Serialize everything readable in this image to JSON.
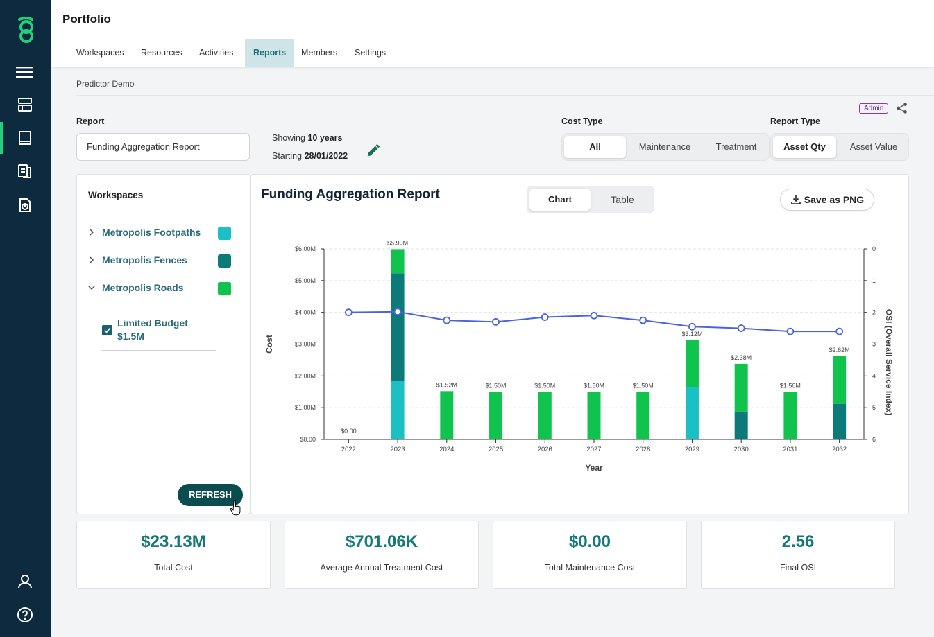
{
  "app": {
    "title": "Portfolio"
  },
  "tabs": [
    "Workspaces",
    "Resources",
    "Activities",
    "Reports",
    "Members",
    "Settings"
  ],
  "active_tab": "Reports",
  "breadcrumb": "Predictor Demo",
  "report": {
    "label": "Report",
    "value": "Funding Aggregation Report"
  },
  "showing": {
    "years_prefix": "Showing",
    "years_value": "10 years",
    "start_prefix": "Starting",
    "start_value": "28/01/2022"
  },
  "cost_type": {
    "label": "Cost Type",
    "options": [
      "All",
      "Maintenance",
      "Treatment"
    ],
    "selected": "All"
  },
  "report_type": {
    "label": "Report Type",
    "options": [
      "Asset Qty",
      "Asset Value"
    ],
    "selected": "Asset Qty"
  },
  "badge": "Admin",
  "workspaces": {
    "title": "Workspaces",
    "items": [
      {
        "name": "Metropolis Footpaths",
        "expanded": false,
        "color": "#1bc0c4"
      },
      {
        "name": "Metropolis Fences",
        "expanded": false,
        "color": "#0b7a78"
      },
      {
        "name": "Metropolis Roads",
        "expanded": true,
        "color": "#10c34d"
      }
    ],
    "budget": {
      "line1": "Limited Budget",
      "line2": "$1.5M",
      "checked": true
    },
    "refresh_label": "REFRESH"
  },
  "view_toggle": {
    "options": [
      "Chart",
      "Table"
    ],
    "selected": "Chart"
  },
  "save_label": "Save as PNG",
  "chart_data": {
    "type": "bar",
    "title": "Funding Aggregation Report",
    "xlabel": "Year",
    "ylabel": "Cost",
    "y2label": "OSI (Overall Service Index)",
    "ylim": [
      0,
      6
    ],
    "y2lim": [
      0,
      6
    ],
    "y2_inverted": true,
    "y_ticks": [
      "$0.00",
      "$1.00M",
      "$2.00M",
      "$3.00M",
      "$4.00M",
      "$5.00M",
      "$6.00M"
    ],
    "y2_ticks": [
      "0",
      "1",
      "2",
      "3",
      "4",
      "5",
      "6"
    ],
    "categories": [
      "2022",
      "2023",
      "2024",
      "2025",
      "2026",
      "2027",
      "2028",
      "2029",
      "2030",
      "2031",
      "2032"
    ],
    "series": [
      {
        "name": "Metropolis Footpaths",
        "color": "#1bc0c4",
        "values": [
          0,
          1.85,
          0,
          0,
          0,
          0,
          0,
          1.65,
          0,
          0,
          0
        ]
      },
      {
        "name": "Metropolis Fences",
        "color": "#0b7a78",
        "values": [
          0,
          3.38,
          0,
          0,
          0,
          0,
          0,
          0,
          0.88,
          0,
          1.12
        ]
      },
      {
        "name": "Metropolis Roads",
        "color": "#10c34d",
        "values": [
          0,
          0.76,
          1.52,
          1.5,
          1.5,
          1.5,
          1.5,
          1.47,
          1.5,
          1.5,
          1.5
        ]
      }
    ],
    "totals_labels": [
      "$0.00",
      "$5.99M",
      "$1.52M",
      "$1.50M",
      "$1.50M",
      "$1.50M",
      "$1.50M",
      "$3.12M",
      "$2.38M",
      "$1.50M",
      "$2.62M"
    ],
    "osi": {
      "color": "#4a63e0",
      "values": [
        2.0,
        1.98,
        2.25,
        2.3,
        2.15,
        2.1,
        2.25,
        2.45,
        2.5,
        2.6,
        2.6
      ]
    },
    "grid": true,
    "legend": "none"
  },
  "stats": [
    {
      "value": "$23.13M",
      "caption": "Total Cost"
    },
    {
      "value": "$701.06K",
      "caption": "Average Annual Treatment Cost"
    },
    {
      "value": "$0.00",
      "caption": "Total Maintenance Cost"
    },
    {
      "value": "2.56",
      "caption": "Final OSI"
    }
  ]
}
